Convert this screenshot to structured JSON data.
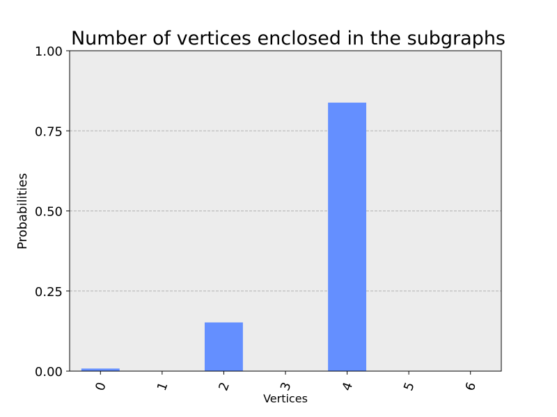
{
  "chart_data": {
    "type": "bar",
    "title": "Number of vertices enclosed in the subgraphs",
    "xlabel": "Vertices",
    "ylabel": "Probabilities",
    "categories": [
      "0",
      "1",
      "2",
      "3",
      "4",
      "5",
      "6"
    ],
    "values": [
      0.008,
      0.0,
      0.152,
      0.0,
      0.838,
      0.0,
      0.0
    ],
    "ylim": [
      0,
      1.0
    ],
    "yticks": [
      "0.00",
      "0.25",
      "0.50",
      "0.75",
      "1.00"
    ],
    "ytick_values": [
      0,
      0.25,
      0.5,
      0.75,
      1.0
    ],
    "grid": "horizontal dashed",
    "legend": "none",
    "colors": {
      "bar": "#648fff",
      "plot_background": "#ececec",
      "grid": "#b0b0b0"
    }
  }
}
